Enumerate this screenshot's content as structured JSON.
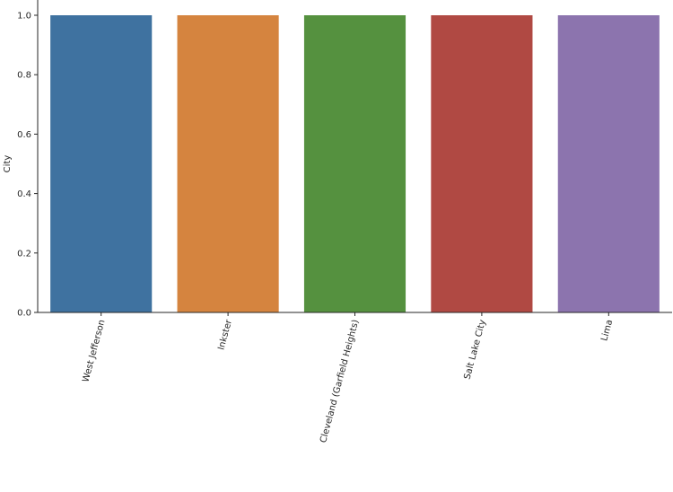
{
  "chart_data": {
    "type": "bar",
    "title": "",
    "xlabel": "",
    "ylabel": "City",
    "categories": [
      "West Jefferson",
      "Inkster",
      "Cleveland (Garfield Heights)",
      "Salt Lake City",
      "Lima"
    ],
    "values": [
      1.0,
      1.0,
      1.0,
      1.0,
      1.0
    ],
    "ylim": [
      0,
      1.0
    ],
    "yticks": [
      "0.0",
      "0.2",
      "0.4",
      "0.6",
      "0.8",
      "1.0"
    ],
    "grid": false,
    "legend": "none",
    "colors": [
      "#3f72a0",
      "#d5843f",
      "#55913f",
      "#b04943",
      "#8c74ae"
    ]
  }
}
